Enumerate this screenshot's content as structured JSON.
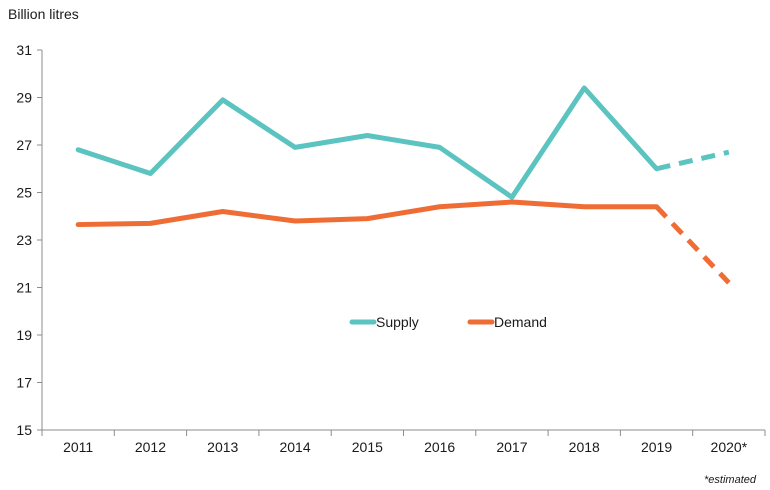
{
  "chart_data": {
    "type": "line",
    "ylabel": "Billion litres",
    "categories": [
      "2011",
      "2012",
      "2013",
      "2014",
      "2015",
      "2016",
      "2017",
      "2018",
      "2019",
      "2020*"
    ],
    "ylim": [
      15,
      31
    ],
    "yticks": [
      15,
      17,
      19,
      21,
      23,
      25,
      27,
      29,
      31
    ],
    "series": [
      {
        "name": "Supply",
        "color": "#5bc4c1",
        "values": [
          26.8,
          25.8,
          28.9,
          26.9,
          27.4,
          26.9,
          24.8,
          29.4,
          26.0,
          26.7
        ],
        "estimated_from_index": 8
      },
      {
        "name": "Demand",
        "color": "#ef6c35",
        "values": [
          23.65,
          23.7,
          24.2,
          23.8,
          23.9,
          24.4,
          24.6,
          24.4,
          24.4,
          21.2
        ],
        "estimated_from_index": 8
      }
    ],
    "legend_position": "center",
    "grid": false,
    "footnote": "*estimated"
  }
}
